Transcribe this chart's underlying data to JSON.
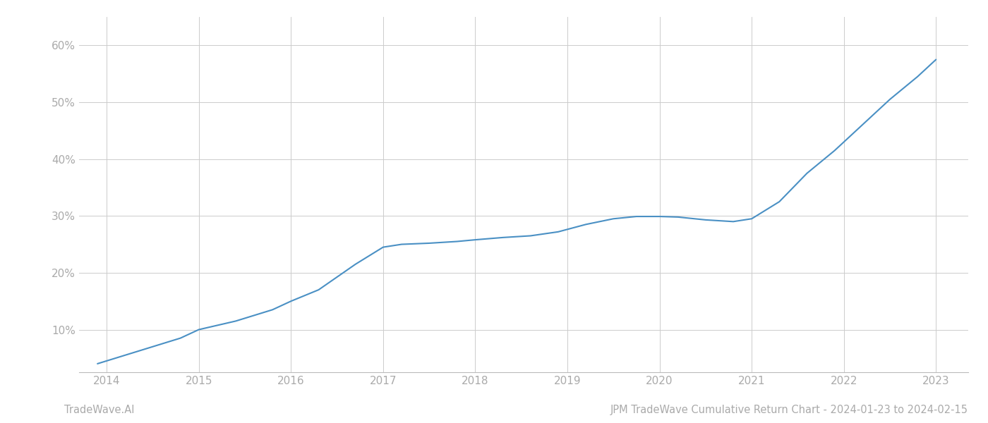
{
  "x_values": [
    2013.9,
    2014.2,
    2014.8,
    2015.0,
    2015.4,
    2015.8,
    2016.0,
    2016.3,
    2016.7,
    2017.0,
    2017.2,
    2017.5,
    2017.8,
    2018.0,
    2018.3,
    2018.6,
    2018.9,
    2019.2,
    2019.5,
    2019.75,
    2020.0,
    2020.2,
    2020.5,
    2020.8,
    2021.0,
    2021.3,
    2021.6,
    2021.9,
    2022.2,
    2022.5,
    2022.8,
    2023.0
  ],
  "y_values": [
    0.04,
    0.055,
    0.085,
    0.1,
    0.115,
    0.135,
    0.15,
    0.17,
    0.215,
    0.245,
    0.25,
    0.252,
    0.255,
    0.258,
    0.262,
    0.265,
    0.272,
    0.285,
    0.295,
    0.299,
    0.299,
    0.298,
    0.293,
    0.29,
    0.295,
    0.325,
    0.375,
    0.415,
    0.46,
    0.505,
    0.545,
    0.575
  ],
  "line_color": "#4a90c4",
  "line_width": 1.5,
  "background_color": "#ffffff",
  "grid_color": "#cccccc",
  "grid_linewidth": 0.7,
  "yticks": [
    0.1,
    0.2,
    0.3,
    0.4,
    0.5,
    0.6
  ],
  "ytick_labels": [
    "10%",
    "20%",
    "30%",
    "40%",
    "50%",
    "60%"
  ],
  "xticks": [
    2014,
    2015,
    2016,
    2017,
    2018,
    2019,
    2020,
    2021,
    2022,
    2023
  ],
  "xtick_labels": [
    "2014",
    "2015",
    "2016",
    "2017",
    "2018",
    "2019",
    "2020",
    "2021",
    "2022",
    "2023"
  ],
  "xlim": [
    2013.7,
    2023.35
  ],
  "ylim": [
    0.025,
    0.65
  ],
  "footer_left": "TradeWave.AI",
  "footer_right": "JPM TradeWave Cumulative Return Chart - 2024-01-23 to 2024-02-15",
  "footer_fontsize": 10.5,
  "tick_fontsize": 11,
  "tick_color": "#aaaaaa",
  "spine_color": "#bbbbbb"
}
